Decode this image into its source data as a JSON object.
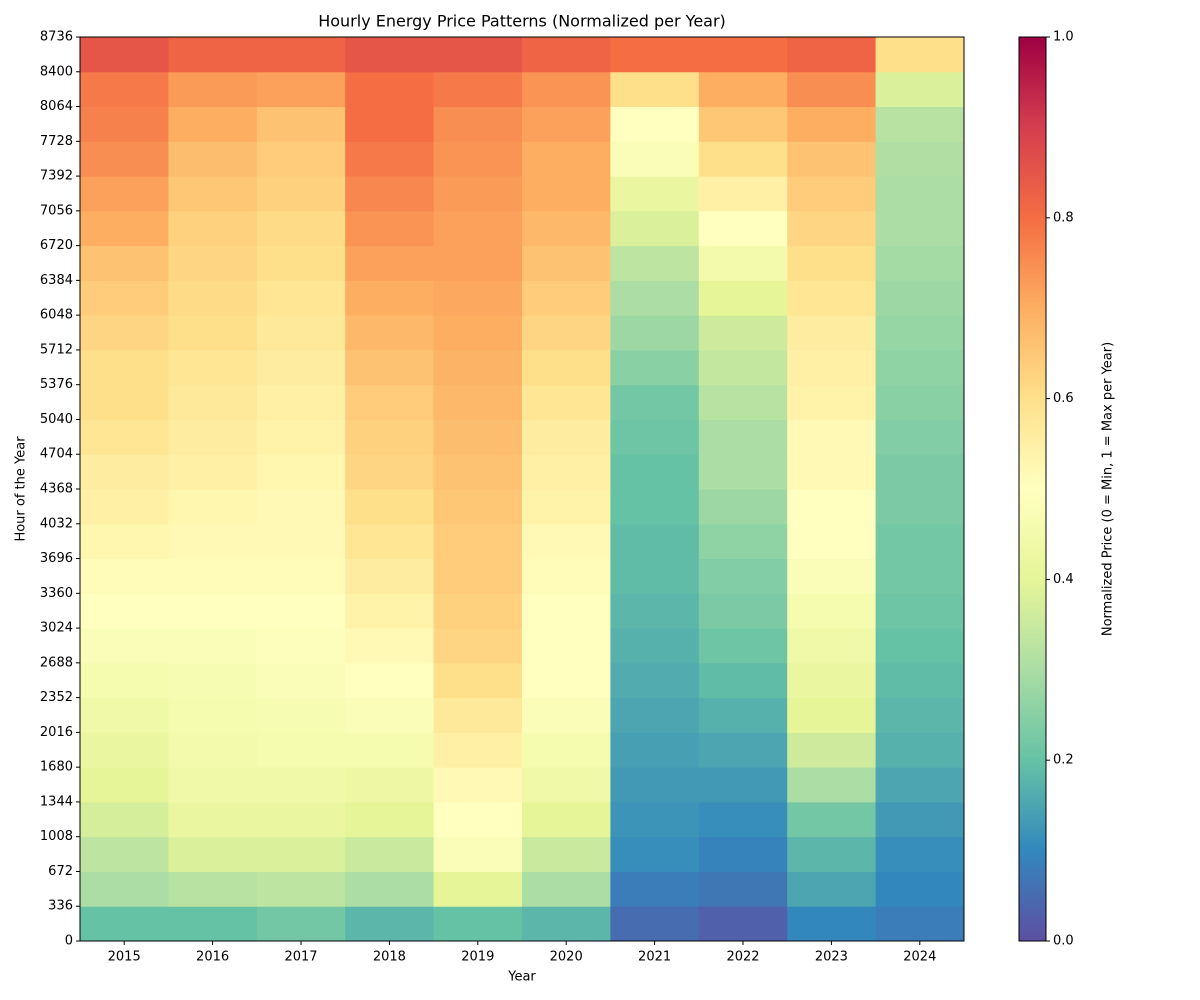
{
  "chart_data": {
    "type": "heatmap",
    "title": "Hourly Energy Price Patterns (Normalized per Year)",
    "x_label": "Year",
    "y_label": "Hour of the Year",
    "colorbar_label": "Normalized Price (0 = Min, 1 = Max per Year)",
    "colormap": "Spectral",
    "categories": [
      "2015",
      "2016",
      "2017",
      "2018",
      "2019",
      "2020",
      "2021",
      "2022",
      "2023",
      "2024"
    ],
    "ylim": [
      0,
      8736
    ],
    "yticks": [
      0,
      336,
      672,
      1008,
      1344,
      1680,
      2016,
      2352,
      2688,
      3024,
      3360,
      3696,
      4032,
      4368,
      4704,
      5040,
      5376,
      5712,
      6048,
      6384,
      6720,
      7056,
      7392,
      7728,
      8064,
      8400,
      8736
    ],
    "clim": [
      0,
      1
    ],
    "cticks": [
      {
        "value": 0,
        "label": "0.0"
      },
      {
        "value": 0.2,
        "label": "0.2"
      },
      {
        "value": 0.4,
        "label": "0.4"
      },
      {
        "value": 0.6,
        "label": "0.6"
      },
      {
        "value": 0.8,
        "label": "0.8"
      },
      {
        "value": 1,
        "label": "1.0"
      }
    ],
    "z": [
      [
        0.2,
        0.3,
        0.33,
        0.37,
        0.4,
        0.42,
        0.44,
        0.46,
        0.48,
        0.5,
        0.51,
        0.53,
        0.55,
        0.56,
        0.58,
        0.6,
        0.6,
        0.62,
        0.64,
        0.66,
        0.7,
        0.72,
        0.75,
        0.77,
        0.78,
        0.85
      ],
      [
        0.2,
        0.32,
        0.38,
        0.42,
        0.44,
        0.45,
        0.46,
        0.47,
        0.48,
        0.5,
        0.51,
        0.52,
        0.53,
        0.55,
        0.56,
        0.57,
        0.58,
        0.6,
        0.61,
        0.62,
        0.63,
        0.65,
        0.67,
        0.7,
        0.73,
        0.82
      ],
      [
        0.22,
        0.33,
        0.38,
        0.42,
        0.44,
        0.46,
        0.47,
        0.48,
        0.49,
        0.5,
        0.51,
        0.52,
        0.52,
        0.53,
        0.54,
        0.55,
        0.56,
        0.57,
        0.58,
        0.6,
        0.61,
        0.63,
        0.64,
        0.66,
        0.72,
        0.82
      ],
      [
        0.18,
        0.3,
        0.35,
        0.4,
        0.43,
        0.46,
        0.48,
        0.5,
        0.52,
        0.54,
        0.56,
        0.58,
        0.6,
        0.62,
        0.63,
        0.64,
        0.66,
        0.68,
        0.7,
        0.72,
        0.74,
        0.76,
        0.78,
        0.8,
        0.8,
        0.85
      ],
      [
        0.2,
        0.4,
        0.48,
        0.5,
        0.52,
        0.55,
        0.57,
        0.6,
        0.62,
        0.63,
        0.64,
        0.64,
        0.65,
        0.66,
        0.67,
        0.68,
        0.69,
        0.7,
        0.71,
        0.72,
        0.72,
        0.73,
        0.74,
        0.75,
        0.78,
        0.85
      ],
      [
        0.18,
        0.3,
        0.35,
        0.4,
        0.44,
        0.46,
        0.48,
        0.5,
        0.5,
        0.5,
        0.51,
        0.52,
        0.54,
        0.55,
        0.56,
        0.58,
        0.6,
        0.62,
        0.64,
        0.66,
        0.68,
        0.7,
        0.7,
        0.72,
        0.74,
        0.82
      ],
      [
        0.05,
        0.08,
        0.11,
        0.12,
        0.13,
        0.14,
        0.15,
        0.16,
        0.17,
        0.18,
        0.19,
        0.19,
        0.2,
        0.2,
        0.21,
        0.22,
        0.25,
        0.28,
        0.3,
        0.33,
        0.38,
        0.42,
        0.48,
        0.5,
        0.6,
        0.8
      ],
      [
        0.03,
        0.07,
        0.09,
        0.11,
        0.13,
        0.15,
        0.17,
        0.19,
        0.21,
        0.23,
        0.24,
        0.26,
        0.28,
        0.3,
        0.3,
        0.32,
        0.34,
        0.36,
        0.4,
        0.45,
        0.5,
        0.55,
        0.6,
        0.65,
        0.7,
        0.8
      ],
      [
        0.1,
        0.15,
        0.18,
        0.22,
        0.3,
        0.36,
        0.4,
        0.42,
        0.44,
        0.46,
        0.48,
        0.5,
        0.5,
        0.52,
        0.52,
        0.54,
        0.55,
        0.56,
        0.58,
        0.6,
        0.62,
        0.64,
        0.66,
        0.7,
        0.75,
        0.82
      ],
      [
        0.08,
        0.1,
        0.11,
        0.13,
        0.15,
        0.17,
        0.18,
        0.19,
        0.2,
        0.21,
        0.22,
        0.22,
        0.23,
        0.23,
        0.24,
        0.25,
        0.26,
        0.27,
        0.28,
        0.29,
        0.3,
        0.3,
        0.31,
        0.32,
        0.38,
        0.6
      ]
    ]
  }
}
